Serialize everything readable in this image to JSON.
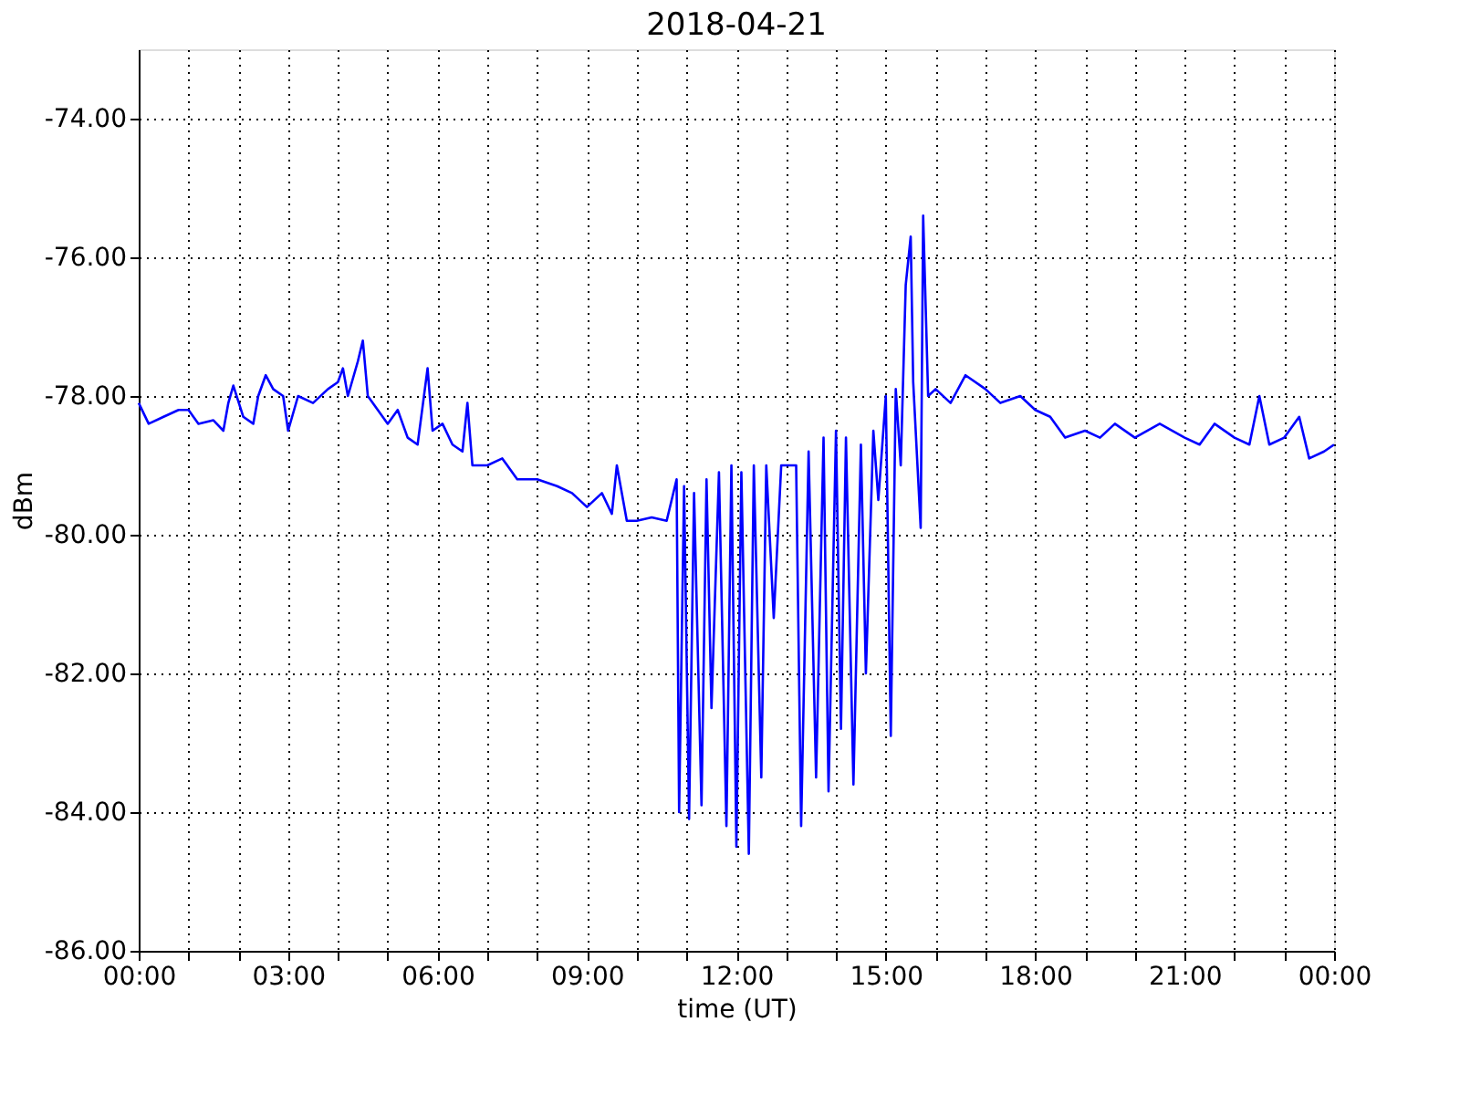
{
  "chart_data": {
    "type": "line",
    "title": "2018-04-21",
    "xlabel": "time (UT)",
    "ylabel": "dBm",
    "xlim": [
      0,
      24
    ],
    "ylim": [
      -86,
      -73
    ],
    "xticks": [
      {
        "value": 0,
        "label": "00:00"
      },
      {
        "value": 1,
        "label": null
      },
      {
        "value": 2,
        "label": null
      },
      {
        "value": 3,
        "label": "03:00"
      },
      {
        "value": 4,
        "label": null
      },
      {
        "value": 5,
        "label": null
      },
      {
        "value": 6,
        "label": "06:00"
      },
      {
        "value": 7,
        "label": null
      },
      {
        "value": 8,
        "label": null
      },
      {
        "value": 9,
        "label": "09:00"
      },
      {
        "value": 10,
        "label": null
      },
      {
        "value": 11,
        "label": null
      },
      {
        "value": 12,
        "label": "12:00"
      },
      {
        "value": 13,
        "label": null
      },
      {
        "value": 14,
        "label": null
      },
      {
        "value": 15,
        "label": "15:00"
      },
      {
        "value": 16,
        "label": null
      },
      {
        "value": 17,
        "label": null
      },
      {
        "value": 18,
        "label": "18:00"
      },
      {
        "value": 19,
        "label": null
      },
      {
        "value": 20,
        "label": null
      },
      {
        "value": 21,
        "label": "21:00"
      },
      {
        "value": 22,
        "label": null
      },
      {
        "value": 23,
        "label": null
      },
      {
        "value": 24,
        "label": "00:00"
      }
    ],
    "yticks": [
      {
        "value": -86,
        "label": "-86.00"
      },
      {
        "value": -84,
        "label": "-84.00"
      },
      {
        "value": -82,
        "label": "-82.00"
      },
      {
        "value": -80,
        "label": "-80.00"
      },
      {
        "value": -78,
        "label": "-78.00"
      },
      {
        "value": -76,
        "label": "-76.00"
      },
      {
        "value": -74,
        "label": "-74.00"
      }
    ],
    "grid": true,
    "legend": false,
    "marker": "none",
    "line_style": "solid",
    "series": [
      {
        "color": "#0000ff",
        "x": [
          0.0,
          0.2,
          0.5,
          0.8,
          1.0,
          1.2,
          1.5,
          1.7,
          1.8,
          1.9,
          2.1,
          2.3,
          2.4,
          2.55,
          2.7,
          2.9,
          3.0,
          3.2,
          3.5,
          3.8,
          4.0,
          4.1,
          4.2,
          4.4,
          4.5,
          4.6,
          4.8,
          5.0,
          5.2,
          5.4,
          5.6,
          5.8,
          5.9,
          6.1,
          6.3,
          6.5,
          6.6,
          6.7,
          7.0,
          7.3,
          7.6,
          8.0,
          8.4,
          8.7,
          9.0,
          9.3,
          9.5,
          9.6,
          9.8,
          10.0,
          10.3,
          10.6,
          10.8,
          10.85,
          10.95,
          11.05,
          11.15,
          11.3,
          11.4,
          11.5,
          11.65,
          11.8,
          11.9,
          12.0,
          12.1,
          12.25,
          12.35,
          12.5,
          12.6,
          12.75,
          12.9,
          13.0,
          13.2,
          13.3,
          13.45,
          13.6,
          13.75,
          13.85,
          14.0,
          14.1,
          14.2,
          14.35,
          14.5,
          14.6,
          14.75,
          14.85,
          15.0,
          15.1,
          15.2,
          15.3,
          15.4,
          15.5,
          15.55,
          15.7,
          15.75,
          15.85,
          16.0,
          16.3,
          16.6,
          17.0,
          17.3,
          17.7,
          18.0,
          18.3,
          18.6,
          19.0,
          19.3,
          19.6,
          20.0,
          20.5,
          21.0,
          21.3,
          21.6,
          22.0,
          22.3,
          22.5,
          22.7,
          23.0,
          23.3,
          23.5,
          23.8,
          24.0
        ],
        "values": [
          -78.1,
          -78.4,
          -78.3,
          -78.2,
          -78.2,
          -78.4,
          -78.35,
          -78.5,
          -78.1,
          -77.85,
          -78.3,
          -78.4,
          -78.0,
          -77.7,
          -77.9,
          -78.0,
          -78.5,
          -78.0,
          -78.1,
          -77.9,
          -77.8,
          -77.6,
          -78.0,
          -77.5,
          -77.2,
          -78.0,
          -78.2,
          -78.4,
          -78.2,
          -78.6,
          -78.7,
          -77.6,
          -78.5,
          -78.4,
          -78.7,
          -78.8,
          -78.1,
          -79.0,
          -79.0,
          -78.9,
          -79.2,
          -79.2,
          -79.3,
          -79.4,
          -79.6,
          -79.4,
          -79.7,
          -79.0,
          -79.8,
          -79.8,
          -79.75,
          -79.8,
          -79.2,
          -84.0,
          -79.3,
          -84.1,
          -79.4,
          -83.9,
          -79.2,
          -82.5,
          -79.1,
          -84.2,
          -79.0,
          -84.5,
          -79.1,
          -84.6,
          -79.0,
          -83.5,
          -79.0,
          -81.2,
          -79.0,
          -79.0,
          -79.0,
          -84.2,
          -78.8,
          -83.5,
          -78.6,
          -83.7,
          -78.5,
          -82.8,
          -78.6,
          -83.6,
          -78.7,
          -82.0,
          -78.5,
          -79.5,
          -78.0,
          -82.9,
          -77.9,
          -79.0,
          -76.4,
          -75.7,
          -77.8,
          -79.9,
          -75.4,
          -78.0,
          -77.9,
          -78.1,
          -77.7,
          -77.9,
          -78.1,
          -78.0,
          -78.2,
          -78.3,
          -78.6,
          -78.5,
          -78.6,
          -78.4,
          -78.6,
          -78.4,
          -78.6,
          -78.7,
          -78.4,
          -78.6,
          -78.7,
          -78.0,
          -78.7,
          -78.6,
          -78.3,
          -78.9,
          -78.8,
          -78.7
        ]
      }
    ]
  }
}
